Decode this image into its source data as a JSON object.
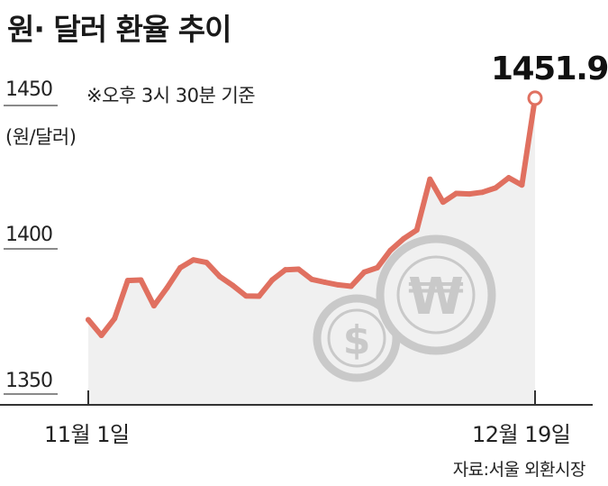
{
  "chart_data": {
    "type": "area",
    "title": "원· 달러 환율 추이",
    "note": "※오후 3시 30분 기준",
    "ylabel": "(원/달러)",
    "source": "자료:서울 외환시장",
    "yticks": [
      "1450",
      "1400",
      "1350"
    ],
    "xticks": [
      "11월 1일",
      "12월 19일"
    ],
    "ylim": [
      1350,
      1450
    ],
    "last_value_label": "1451.9",
    "colors": {
      "line": "#e07060",
      "area": "#f0f0f0",
      "axis": "#333333",
      "icon": "#c9c9c9"
    },
    "icons": [
      "dollar-coin-icon",
      "won-coin-icon"
    ],
    "series": [
      {
        "values": [
          1375.6,
          1370.2,
          1376.0,
          1389.1,
          1389.3,
          1380.4,
          1386.6,
          1393.5,
          1396.2,
          1395.3,
          1390.5,
          1387.4,
          1383.8,
          1383.7,
          1389.3,
          1392.8,
          1393.0,
          1389.5,
          1388.5,
          1387.6,
          1387.1,
          1392.0,
          1393.5,
          1399.5,
          1403.5,
          1406.5,
          1424.0,
          1416.1,
          1419.1,
          1418.9,
          1419.5,
          1421.0,
          1424.5,
          1422.0,
          1451.9
        ]
      }
    ]
  }
}
